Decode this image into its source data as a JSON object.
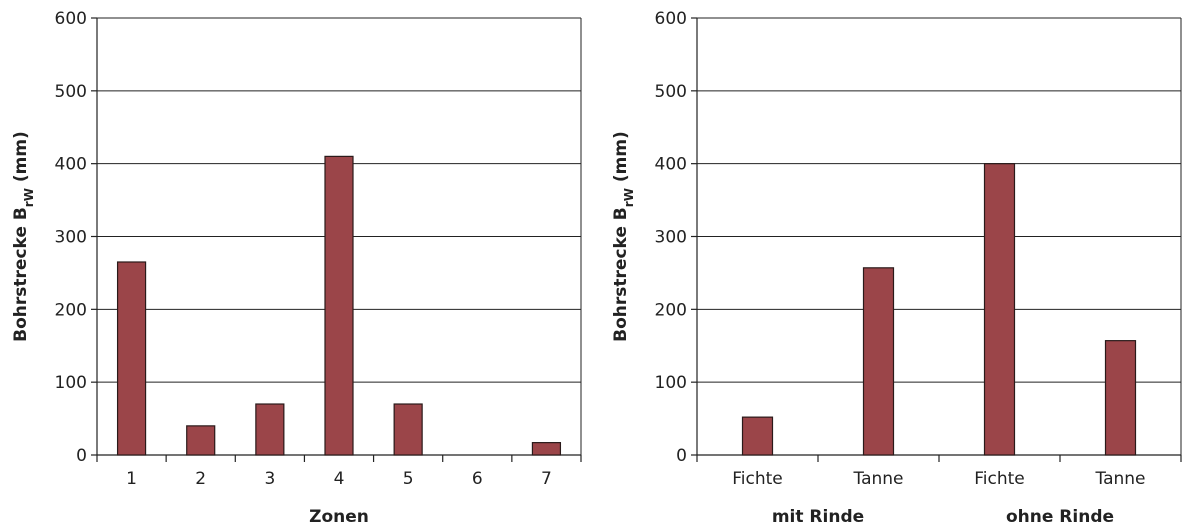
{
  "chart_data": [
    {
      "type": "bar",
      "categories": [
        "1",
        "2",
        "3",
        "4",
        "5",
        "6",
        "7"
      ],
      "values": [
        265,
        40,
        70,
        410,
        70,
        0,
        17
      ],
      "title": "",
      "xlabel": "Zonen",
      "ylabel": "Bohrstrecke B",
      "ylabel_sub": "rW",
      "ylabel_unit": " (mm)",
      "ylim": [
        0,
        600
      ],
      "yticks": [
        "0",
        "100",
        "200",
        "300",
        "400",
        "500",
        "600"
      ],
      "grid": true,
      "bar_color": "#9b4549"
    },
    {
      "type": "bar",
      "categories": [
        "Fichte",
        "Tanne",
        "Fichte",
        "Tanne"
      ],
      "groups": [
        "mit Rinde",
        "ohne Rinde"
      ],
      "values": [
        52,
        257,
        400,
        157
      ],
      "title": "",
      "xlabel": "",
      "ylabel": "Bohrstrecke B",
      "ylabel_sub": "rW",
      "ylabel_unit": " (mm)",
      "ylim": [
        0,
        600
      ],
      "yticks": [
        "0",
        "100",
        "200",
        "300",
        "400",
        "500",
        "600"
      ],
      "grid": true,
      "bar_color": "#9b4549"
    }
  ]
}
